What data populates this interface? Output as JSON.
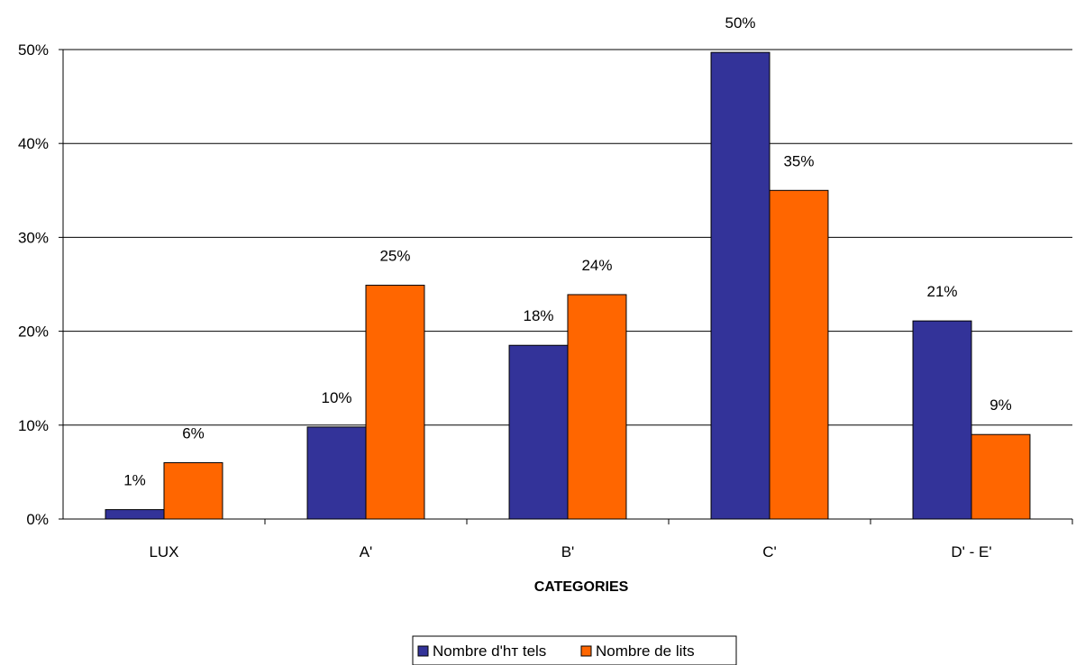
{
  "chart_data": {
    "type": "bar",
    "title": "",
    "xlabel": "CATEGORIES",
    "ylabel": "",
    "categories": [
      "LUX",
      "A'",
      "B'",
      "C'",
      "D' - E'"
    ],
    "series": [
      {
        "name": "Nombre d'hт tels",
        "color": "#333399",
        "values": [
          1,
          9.8,
          18.5,
          49.7,
          21.1
        ],
        "labels": [
          "1%",
          "10%",
          "18%",
          "50%",
          "21%"
        ]
      },
      {
        "name": "Nombre de lits",
        "color": "#FF6600",
        "values": [
          6,
          24.9,
          23.9,
          35,
          9
        ],
        "labels": [
          "6%",
          "25%",
          "24%",
          "35%",
          "9%"
        ]
      }
    ],
    "ylim": [
      0,
      50
    ],
    "yticks": [
      0,
      10,
      20,
      30,
      40,
      50
    ],
    "ytick_labels": [
      "0%",
      "10%",
      "20%",
      "30%",
      "40%",
      "50%"
    ],
    "grid": true,
    "legend_position": "bottom"
  }
}
